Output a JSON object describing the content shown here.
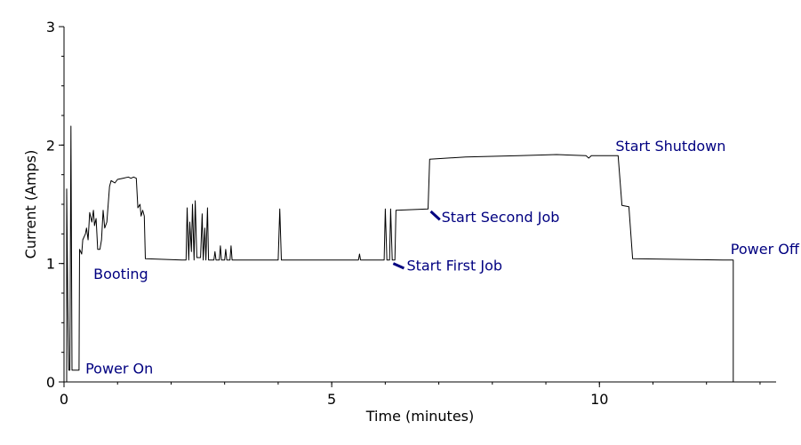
{
  "chart_data": {
    "type": "line",
    "title": "",
    "xlabel": "Time (minutes)",
    "ylabel": "Current (Amps)",
    "xlim": [
      0,
      13.3
    ],
    "ylim": [
      0,
      3
    ],
    "x_ticks": [
      0,
      5,
      10
    ],
    "y_ticks": [
      0,
      1,
      2,
      3
    ],
    "grid": false,
    "line_color": "#000000",
    "annotation_color": "#000080",
    "series": [
      {
        "values": [
          [
            0,
            0
          ],
          [
            0.05,
            0
          ],
          [
            0.05,
            1.63
          ],
          [
            0.07,
            0.7
          ],
          [
            0.09,
            0.1
          ],
          [
            0.11,
            0.1
          ],
          [
            0.13,
            2.16
          ],
          [
            0.15,
            0.1
          ],
          [
            0.28,
            0.1
          ],
          [
            0.29,
            1.12
          ],
          [
            0.33,
            1.08
          ],
          [
            0.35,
            1.2
          ],
          [
            0.4,
            1.25
          ],
          [
            0.42,
            1.3
          ],
          [
            0.45,
            1.2
          ],
          [
            0.48,
            1.43
          ],
          [
            0.52,
            1.35
          ],
          [
            0.55,
            1.45
          ],
          [
            0.57,
            1.32
          ],
          [
            0.6,
            1.38
          ],
          [
            0.63,
            1.12
          ],
          [
            0.67,
            1.12
          ],
          [
            0.7,
            1.2
          ],
          [
            0.73,
            1.45
          ],
          [
            0.76,
            1.3
          ],
          [
            0.8,
            1.35
          ],
          [
            0.85,
            1.65
          ],
          [
            0.88,
            1.7
          ],
          [
            0.95,
            1.68
          ],
          [
            1.0,
            1.71
          ],
          [
            1.1,
            1.72
          ],
          [
            1.2,
            1.73
          ],
          [
            1.25,
            1.72
          ],
          [
            1.3,
            1.73
          ],
          [
            1.35,
            1.72
          ],
          [
            1.38,
            1.47
          ],
          [
            1.42,
            1.5
          ],
          [
            1.44,
            1.4
          ],
          [
            1.47,
            1.45
          ],
          [
            1.5,
            1.4
          ],
          [
            1.52,
            1.04
          ],
          [
            2.2,
            1.03
          ],
          [
            2.28,
            1.03
          ],
          [
            2.3,
            1.47
          ],
          [
            2.33,
            1.03
          ],
          [
            2.35,
            1.35
          ],
          [
            2.38,
            1.1
          ],
          [
            2.4,
            1.5
          ],
          [
            2.43,
            1.03
          ],
          [
            2.45,
            1.53
          ],
          [
            2.48,
            1.05
          ],
          [
            2.55,
            1.05
          ],
          [
            2.58,
            1.42
          ],
          [
            2.6,
            1.03
          ],
          [
            2.63,
            1.3
          ],
          [
            2.65,
            1.03
          ],
          [
            2.68,
            1.47
          ],
          [
            2.7,
            1.03
          ],
          [
            2.8,
            1.03
          ],
          [
            2.82,
            1.1
          ],
          [
            2.84,
            1.03
          ],
          [
            2.9,
            1.03
          ],
          [
            2.92,
            1.15
          ],
          [
            2.94,
            1.03
          ],
          [
            3.0,
            1.03
          ],
          [
            3.02,
            1.12
          ],
          [
            3.04,
            1.03
          ],
          [
            3.1,
            1.03
          ],
          [
            3.12,
            1.15
          ],
          [
            3.14,
            1.03
          ],
          [
            4.0,
            1.03
          ],
          [
            4.03,
            1.46
          ],
          [
            4.06,
            1.03
          ],
          [
            5.5,
            1.03
          ],
          [
            5.52,
            1.08
          ],
          [
            5.54,
            1.03
          ],
          [
            5.98,
            1.03
          ],
          [
            6.0,
            1.46
          ],
          [
            6.03,
            1.03
          ],
          [
            6.08,
            1.03
          ],
          [
            6.1,
            1.46
          ],
          [
            6.13,
            1.03
          ],
          [
            6.18,
            1.03
          ],
          [
            6.2,
            1.45
          ],
          [
            6.8,
            1.46
          ],
          [
            6.83,
            1.88
          ],
          [
            7.5,
            1.9
          ],
          [
            8.5,
            1.91
          ],
          [
            9.2,
            1.92
          ],
          [
            9.75,
            1.91
          ],
          [
            9.8,
            1.89
          ],
          [
            9.85,
            1.91
          ],
          [
            10.35,
            1.91
          ],
          [
            10.42,
            1.49
          ],
          [
            10.55,
            1.48
          ],
          [
            10.62,
            1.04
          ],
          [
            12.3,
            1.03
          ],
          [
            12.5,
            1.03
          ],
          [
            12.5,
            0
          ]
        ]
      }
    ],
    "annotations": [
      {
        "text": "Power On",
        "x": 0.4,
        "y": 0.07
      },
      {
        "text": "Booting",
        "x": 0.55,
        "y": 0.87
      },
      {
        "text": "Start First Job",
        "x": 6.4,
        "y": 0.94
      },
      {
        "text": "Start Second Job",
        "x": 7.05,
        "y": 1.35
      },
      {
        "text": "Start Shutdown",
        "x": 10.3,
        "y": 1.95
      },
      {
        "text": "Power Off",
        "x": 12.45,
        "y": 1.08
      }
    ],
    "pointers": [
      {
        "from": [
          6.15,
          1.0
        ],
        "to": [
          6.35,
          0.96
        ]
      },
      {
        "from": [
          6.85,
          1.44
        ],
        "to": [
          7.02,
          1.37
        ]
      }
    ]
  }
}
